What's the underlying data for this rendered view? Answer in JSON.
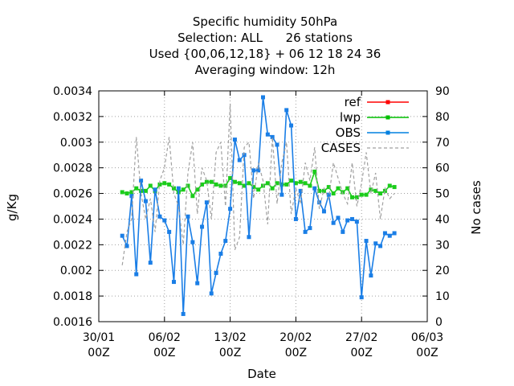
{
  "chart_data": {
    "type": "line",
    "title_lines": [
      "Specific humidity 50hPa",
      "Selection: ALL      26 stations",
      "Used {00,06,12,18} + 06 12 18 24 36",
      "Averaging window: 12h"
    ],
    "xlabel": "Date",
    "ylabel": "g/Kg",
    "y2label": "No cases",
    "x_ticks": [
      {
        "day": 0,
        "label1": "30/01",
        "label2": "00Z"
      },
      {
        "day": 7,
        "label1": "06/02",
        "label2": "00Z"
      },
      {
        "day": 14,
        "label1": "13/02",
        "label2": "00Z"
      },
      {
        "day": 21,
        "label1": "20/02",
        "label2": "00Z"
      },
      {
        "day": 28,
        "label1": "27/02",
        "label2": "00Z"
      },
      {
        "day": 35,
        "label1": "06/03",
        "label2": "00Z"
      }
    ],
    "xlim": [
      0,
      35
    ],
    "ylim": [
      0.0016,
      0.0034
    ],
    "y_ticks": [
      "0.0016",
      "0.0018",
      "0.002",
      "0.0022",
      "0.0024",
      "0.0026",
      "0.0028",
      "0.003",
      "0.0032",
      "0.0034"
    ],
    "y2lim": [
      0,
      90
    ],
    "y2_ticks": [
      "0",
      "10",
      "20",
      "30",
      "40",
      "50",
      "60",
      "70",
      "80",
      "90"
    ],
    "grid": true,
    "legend": {
      "position": "top-right",
      "entries": [
        {
          "name": "ref",
          "color": "#ff0000",
          "style": "line-marker"
        },
        {
          "name": "lwp",
          "color": "#00c000",
          "style": "line-marker"
        },
        {
          "name": "OBS",
          "color": "#0080e0",
          "style": "line-marker"
        },
        {
          "name": "CASES",
          "color": "#a0a0a0",
          "style": "dashed"
        }
      ]
    },
    "series": [
      {
        "name": "lwp",
        "color": "#1bcc1b",
        "x": [
          2.5,
          3,
          3.5,
          4,
          4.5,
          5,
          5.5,
          6,
          6.5,
          7,
          7.5,
          8,
          8.5,
          9,
          9.5,
          10,
          10.5,
          11,
          11.5,
          12,
          12.5,
          13,
          13.5,
          14,
          14.5,
          15,
          15.5,
          16,
          16.5,
          17,
          17.5,
          18,
          18.5,
          19,
          19.5,
          20,
          20.5,
          21,
          21.5,
          22,
          22.5,
          23,
          23.5,
          24,
          24.5,
          25,
          25.5,
          26,
          26.5,
          27,
          27.5,
          28,
          28.5,
          29,
          29.5,
          30,
          30.5,
          31,
          31.5
        ],
        "y": [
          0.00261,
          0.0026,
          0.00261,
          0.00264,
          0.00262,
          0.00262,
          0.00266,
          0.00262,
          0.00267,
          0.00268,
          0.00267,
          0.00264,
          0.00261,
          0.00263,
          0.00266,
          0.00258,
          0.00263,
          0.00267,
          0.00269,
          0.00269,
          0.00267,
          0.00266,
          0.00266,
          0.00272,
          0.00269,
          0.00268,
          0.00266,
          0.00268,
          0.00265,
          0.00263,
          0.00266,
          0.00268,
          0.00264,
          0.00268,
          0.00267,
          0.00267,
          0.0027,
          0.00268,
          0.00269,
          0.00268,
          0.00266,
          0.00277,
          0.00262,
          0.00262,
          0.00265,
          0.0026,
          0.00264,
          0.00261,
          0.00264,
          0.00257,
          0.00257,
          0.00259,
          0.00259,
          0.00263,
          0.00262,
          0.0026,
          0.00262,
          0.00266,
          0.00265
        ]
      },
      {
        "name": "OBS",
        "color": "#1a7ee6",
        "x": [
          2.5,
          3,
          3.5,
          4,
          4.5,
          5,
          5.5,
          6,
          6.5,
          7,
          7.5,
          8,
          8.5,
          9,
          9.5,
          10,
          10.5,
          11,
          11.5,
          12,
          12.5,
          13,
          13.5,
          14,
          14.5,
          15,
          15.5,
          16,
          16.5,
          17,
          17.5,
          18,
          18.5,
          19,
          19.5,
          20,
          20.5,
          21,
          21.5,
          22,
          22.5,
          23,
          23.5,
          24,
          24.5,
          25,
          25.5,
          26,
          26.5,
          27,
          27.5,
          28,
          28.5,
          29,
          29.5,
          30,
          30.5,
          31,
          31.5
        ],
        "y": [
          0.00227,
          0.00219,
          0.00258,
          0.00197,
          0.0027,
          0.00254,
          0.00206,
          0.00263,
          0.00242,
          0.00239,
          0.0023,
          0.00191,
          0.00264,
          0.00166,
          0.00242,
          0.00222,
          0.0019,
          0.00234,
          0.00253,
          0.00182,
          0.00198,
          0.00213,
          0.00223,
          0.00248,
          0.00302,
          0.00286,
          0.0029,
          0.00226,
          0.00278,
          0.00278,
          0.00335,
          0.00306,
          0.00304,
          0.00298,
          0.00259,
          0.00325,
          0.00313,
          0.0024,
          0.00262,
          0.0023,
          0.00233,
          0.00264,
          0.00253,
          0.00246,
          0.00259,
          0.00237,
          0.00241,
          0.0023,
          0.00239,
          0.0024,
          0.00238,
          0.00179,
          0.00223,
          0.00196,
          0.00221,
          0.00219,
          0.00229,
          0.00227,
          0.00229
        ]
      },
      {
        "name": "CASES",
        "color": "#a0a0a0",
        "axis": "y2",
        "x": [
          2.5,
          3,
          3.5,
          4,
          4.5,
          5,
          5.5,
          6,
          6.5,
          7,
          7.5,
          8,
          8.5,
          9,
          9.5,
          10,
          10.5,
          11,
          11.5,
          12,
          12.5,
          13,
          13.5,
          14,
          14.5,
          15,
          15.5,
          16,
          16.5,
          17,
          17.5,
          18,
          18.5,
          19,
          19.5,
          20,
          20.5,
          21,
          21.5,
          22,
          22.5,
          23,
          23.5,
          24,
          24.5,
          25,
          25.5,
          26,
          26.5,
          27,
          27.5,
          28,
          28.5,
          29,
          29.5,
          30,
          30.5,
          31,
          31.5
        ],
        "y": [
          22,
          35,
          40,
          72,
          50,
          40,
          48,
          35,
          55,
          60,
          72,
          50,
          45,
          30,
          58,
          70,
          42,
          60,
          55,
          40,
          66,
          70,
          45,
          85,
          28,
          33,
          68,
          70,
          48,
          62,
          55,
          38,
          72,
          46,
          62,
          70,
          42,
          52,
          46,
          62,
          55,
          68,
          44,
          52,
          48,
          62,
          56,
          50,
          46,
          62,
          45,
          54,
          66,
          50,
          58,
          40,
          52,
          48,
          50
        ]
      }
    ]
  }
}
